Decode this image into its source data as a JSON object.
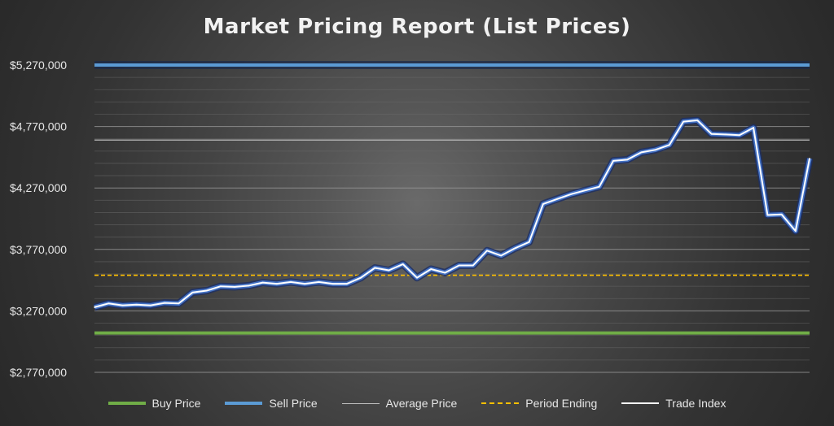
{
  "chart_data": {
    "type": "line",
    "title": "Market Pricing Report (List Prices)",
    "xlabel": "",
    "ylabel": "",
    "ylim": [
      2770000,
      5270000
    ],
    "y_ticks": [
      2770000,
      3270000,
      3770000,
      4270000,
      4770000,
      5270000
    ],
    "y_tick_labels": [
      "$2,770,000",
      "$3,270,000",
      "$3,770,000",
      "$4,270,000",
      "$4,770,000",
      "$5,270,000"
    ],
    "grid": true,
    "legend_position": "bottom",
    "reference_lines": [
      {
        "name": "Buy Price",
        "value": 3090000,
        "color": "#70ad47",
        "style": "solid"
      },
      {
        "name": "Sell Price",
        "value": 5270000,
        "color": "#5b9bd5",
        "style": "solid"
      },
      {
        "name": "Average Price",
        "value": 4660000,
        "color": "#bfbfbf",
        "style": "solid"
      },
      {
        "name": "Period Ending",
        "value": 3560000,
        "color": "#ffc000",
        "style": "dashed"
      }
    ],
    "series": [
      {
        "name": "Trade Index",
        "color": "#ffffff",
        "glow": "#4472c4",
        "values": [
          3300000,
          3330000,
          3315000,
          3320000,
          3315000,
          3335000,
          3330000,
          3420000,
          3435000,
          3470000,
          3465000,
          3475000,
          3500000,
          3490000,
          3505000,
          3490000,
          3505000,
          3490000,
          3490000,
          3540000,
          3620000,
          3600000,
          3650000,
          3540000,
          3610000,
          3580000,
          3640000,
          3640000,
          3760000,
          3720000,
          3780000,
          3830000,
          4140000,
          4180000,
          4220000,
          4250000,
          4280000,
          4490000,
          4500000,
          4560000,
          4580000,
          4620000,
          4810000,
          4820000,
          4710000,
          4705000,
          4700000,
          4760000,
          4050000,
          4055000,
          3920000,
          4510000
        ]
      }
    ]
  },
  "legend": [
    {
      "label": "Buy Price",
      "color": "#70ad47",
      "style": "solid"
    },
    {
      "label": "Sell Price",
      "color": "#5b9bd5",
      "style": "solid"
    },
    {
      "label": "Average Price",
      "color": "#bfbfbf",
      "style": "solid"
    },
    {
      "label": "Period Ending",
      "color": "#ffc000",
      "style": "dashed"
    },
    {
      "label": "Trade Index",
      "color": "#ffffff",
      "style": "solid"
    }
  ]
}
